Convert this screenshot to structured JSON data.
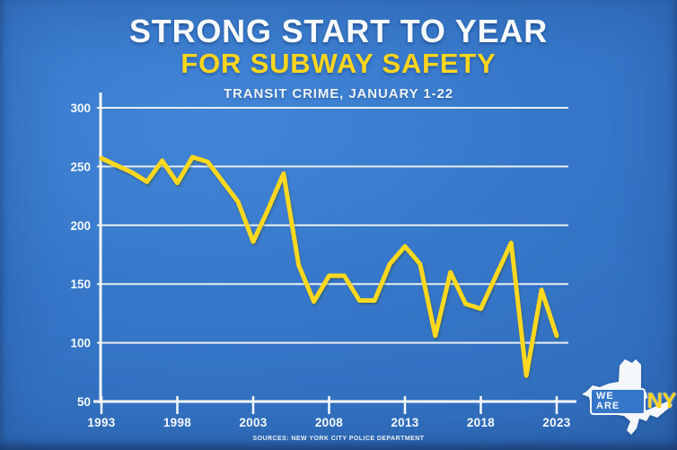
{
  "header": {
    "title_line1": "STRONG START TO YEAR",
    "title_line2": "FOR SUBWAY SAFETY",
    "subtitle": "TRANSIT CRIME, JANUARY 1-22"
  },
  "chart_data": {
    "type": "line",
    "title": "TRANSIT CRIME, JANUARY 1-22",
    "series_name": "Transit crime incidents, January 1-22, by year",
    "x": [
      1993,
      1994,
      1995,
      1996,
      1997,
      1998,
      1999,
      2000,
      2001,
      2002,
      2003,
      2004,
      2005,
      2006,
      2007,
      2008,
      2009,
      2010,
      2011,
      2012,
      2013,
      2014,
      2015,
      2016,
      2017,
      2018,
      2019,
      2020,
      2021,
      2022,
      2023
    ],
    "values": [
      257,
      251,
      245,
      237,
      255,
      236,
      258,
      254,
      237,
      220,
      186,
      214,
      244,
      166,
      135,
      157,
      157,
      136,
      136,
      167,
      182,
      167,
      106,
      160,
      133,
      129,
      157,
      185,
      72,
      145,
      106
    ],
    "xlabel": "",
    "ylabel": "",
    "ylim": [
      50,
      300
    ],
    "yticks": [
      300,
      250,
      200,
      150,
      100,
      50
    ],
    "xticks": [
      1993,
      1998,
      2003,
      2008,
      2013,
      2018,
      2023
    ],
    "grid": true,
    "legend": "none"
  },
  "footer": {
    "source": "SOURCES: NEW YORK CITY POLICE DEPARTMENT"
  },
  "logo": {
    "we_are": "WE ARE",
    "ny": "NY"
  },
  "colors": {
    "background": "#3576c8",
    "accent_yellow": "#ffd51e",
    "line_yellow": "#ffd81f",
    "text_white": "#f6f9fb",
    "grid_white": "#e9eff4"
  }
}
